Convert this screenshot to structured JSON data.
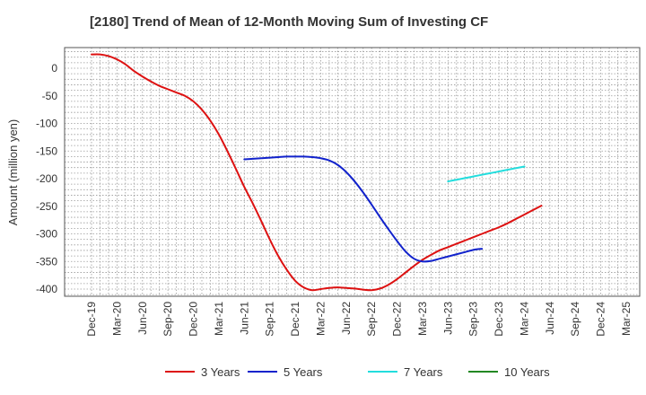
{
  "chart_data": {
    "type": "line",
    "title": "[2180]  Trend of Mean of 12-Month Moving Sum of Investing CF",
    "xlabel": "",
    "ylabel": "Amount (million yen)",
    "x_categories": [
      "Dec-19",
      "Mar-20",
      "Jun-20",
      "Sep-20",
      "Dec-20",
      "Mar-21",
      "Jun-21",
      "Sep-21",
      "Dec-21",
      "Mar-22",
      "Jun-22",
      "Sep-22",
      "Dec-22",
      "Mar-23",
      "Jun-23",
      "Sep-23",
      "Dec-23",
      "Mar-24",
      "Jun-24",
      "Sep-24",
      "Dec-24",
      "Mar-25"
    ],
    "ylim": [
      -410,
      35
    ],
    "yticks": [
      0,
      -50,
      -100,
      -150,
      -200,
      -250,
      -300,
      -350,
      -400
    ],
    "grid": true,
    "legend_position": "bottom",
    "series": [
      {
        "name": "3 Years",
        "color": "#dd1111",
        "points": [
          [
            "Dec-19",
            25
          ],
          [
            "Jan-20",
            25
          ],
          [
            "Feb-20",
            22
          ],
          [
            "Mar-20",
            16
          ],
          [
            "Apr-20",
            7
          ],
          [
            "May-20",
            -5
          ],
          [
            "Jun-20",
            -15
          ],
          [
            "Jul-20",
            -24
          ],
          [
            "Aug-20",
            -32
          ],
          [
            "Sep-20",
            -38
          ],
          [
            "Oct-20",
            -44
          ],
          [
            "Nov-20",
            -50
          ],
          [
            "Dec-20",
            -60
          ],
          [
            "Jan-21",
            -75
          ],
          [
            "Feb-21",
            -95
          ],
          [
            "Mar-21",
            -120
          ],
          [
            "Apr-21",
            -150
          ],
          [
            "May-21",
            -182
          ],
          [
            "Jun-21",
            -215
          ],
          [
            "Jul-21",
            -245
          ],
          [
            "Aug-21",
            -277
          ],
          [
            "Sep-21",
            -310
          ],
          [
            "Oct-21",
            -340
          ],
          [
            "Nov-21",
            -365
          ],
          [
            "Dec-21",
            -385
          ],
          [
            "Jan-22",
            -397
          ],
          [
            "Feb-22",
            -402
          ],
          [
            "Mar-22",
            -400
          ],
          [
            "Apr-22",
            -398
          ],
          [
            "May-22",
            -397
          ],
          [
            "Jun-22",
            -398
          ],
          [
            "Jul-22",
            -399
          ],
          [
            "Aug-22",
            -401
          ],
          [
            "Sep-22",
            -402
          ],
          [
            "Oct-22",
            -399
          ],
          [
            "Nov-22",
            -392
          ],
          [
            "Dec-22",
            -382
          ],
          [
            "Jan-23",
            -370
          ],
          [
            "Feb-23",
            -358
          ],
          [
            "Mar-23",
            -347
          ],
          [
            "Apr-23",
            -338
          ],
          [
            "May-23",
            -330
          ],
          [
            "Jun-23",
            -324
          ],
          [
            "Jul-23",
            -318
          ],
          [
            "Aug-23",
            -312
          ],
          [
            "Sep-23",
            -306
          ],
          [
            "Oct-23",
            -300
          ],
          [
            "Nov-23",
            -294
          ],
          [
            "Dec-23",
            -288
          ],
          [
            "Jan-24",
            -281
          ],
          [
            "Feb-24",
            -273
          ],
          [
            "Mar-24",
            -265
          ],
          [
            "Apr-24",
            -257
          ],
          [
            "May-24",
            -249
          ]
        ]
      },
      {
        "name": "5 Years",
        "color": "#1122cc",
        "points": [
          [
            "Jun-21",
            -165
          ],
          [
            "Jul-21",
            -164
          ],
          [
            "Aug-21",
            -163
          ],
          [
            "Sep-21",
            -162
          ],
          [
            "Oct-21",
            -161
          ],
          [
            "Nov-21",
            -160
          ],
          [
            "Dec-21",
            -160
          ],
          [
            "Jan-22",
            -160
          ],
          [
            "Feb-22",
            -161
          ],
          [
            "Mar-22",
            -163
          ],
          [
            "Apr-22",
            -167
          ],
          [
            "May-22",
            -175
          ],
          [
            "Jun-22",
            -188
          ],
          [
            "Jul-22",
            -205
          ],
          [
            "Aug-22",
            -225
          ],
          [
            "Sep-22",
            -247
          ],
          [
            "Oct-22",
            -270
          ],
          [
            "Nov-22",
            -292
          ],
          [
            "Dec-22",
            -313
          ],
          [
            "Jan-23",
            -332
          ],
          [
            "Feb-23",
            -345
          ],
          [
            "Mar-23",
            -350
          ],
          [
            "Apr-23",
            -349
          ],
          [
            "May-23",
            -345
          ],
          [
            "Jun-23",
            -341
          ],
          [
            "Jul-23",
            -337
          ],
          [
            "Aug-23",
            -333
          ],
          [
            "Sep-23",
            -329
          ],
          [
            "Oct-23",
            -327
          ]
        ]
      },
      {
        "name": "7 Years",
        "color": "#22dddd",
        "points": [
          [
            "Jun-23",
            -205
          ],
          [
            "Jul-23",
            -202
          ],
          [
            "Aug-23",
            -199
          ],
          [
            "Sep-23",
            -196
          ],
          [
            "Oct-23",
            -193
          ],
          [
            "Nov-23",
            -190
          ],
          [
            "Dec-23",
            -187
          ],
          [
            "Jan-24",
            -184
          ],
          [
            "Feb-24",
            -181
          ],
          [
            "Mar-24",
            -178
          ]
        ]
      },
      {
        "name": "10 Years",
        "color": "#228822",
        "points": []
      }
    ]
  }
}
